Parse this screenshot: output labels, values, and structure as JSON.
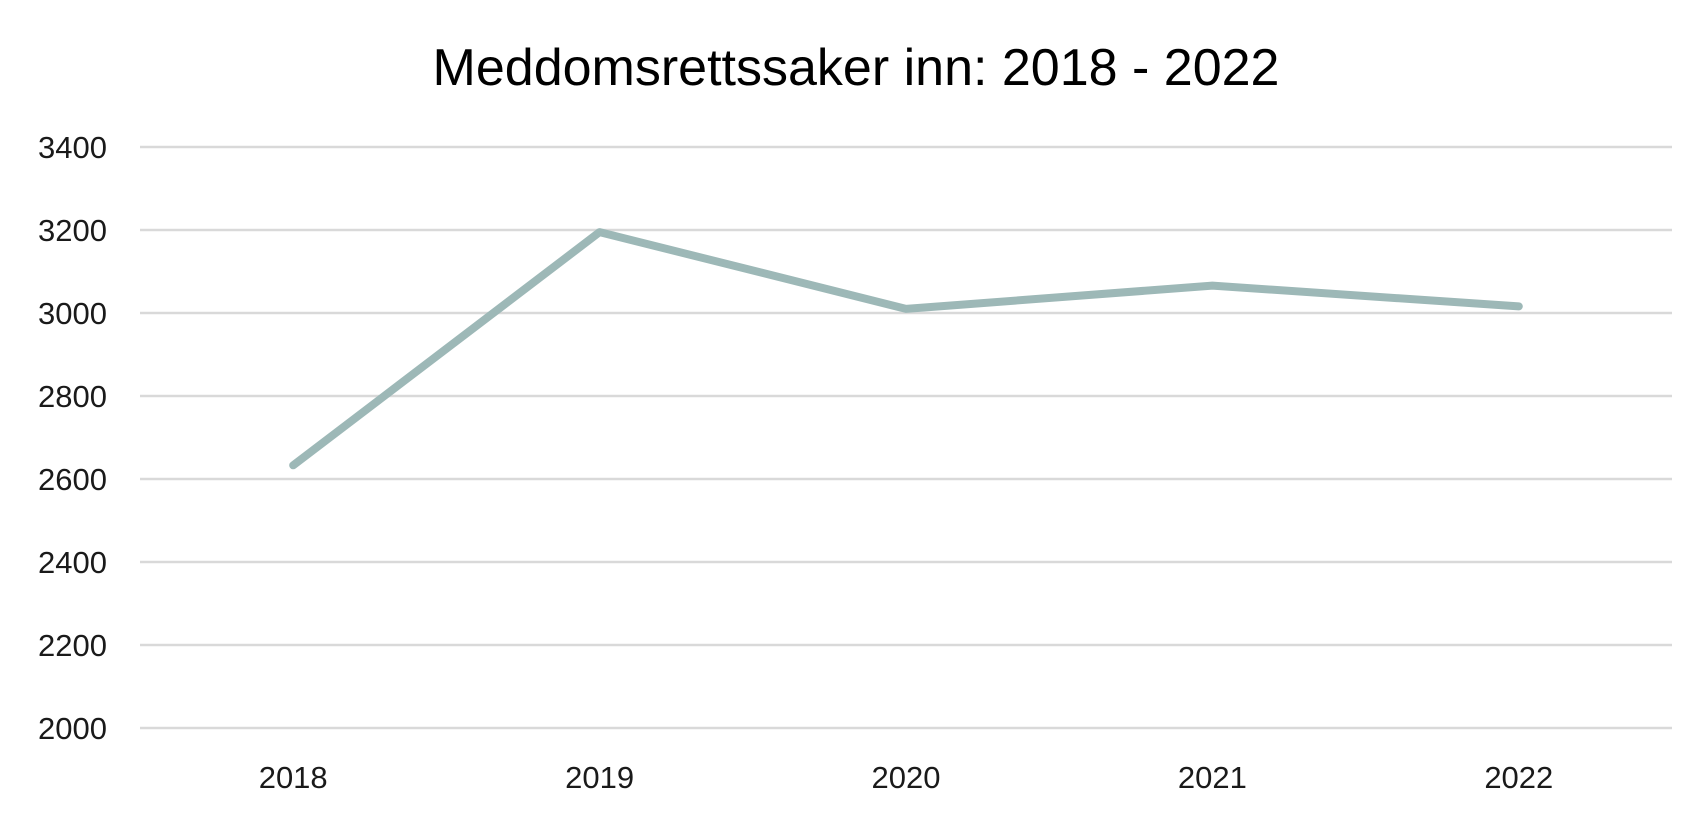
{
  "chart_data": {
    "type": "line",
    "title": "Meddomsrettssaker inn: 2018 - 2022",
    "xlabel": "",
    "ylabel": "",
    "categories": [
      "2018",
      "2019",
      "2020",
      "2021",
      "2022"
    ],
    "series": [
      {
        "values": [
          2633,
          3195,
          3010,
          3066,
          3016
        ],
        "color": "#9db8b7"
      }
    ],
    "ylim": [
      2000,
      3400
    ],
    "yticks": [
      2000,
      2200,
      2400,
      2600,
      2800,
      3000,
      3200,
      3400
    ],
    "grid": true,
    "legend": "none"
  }
}
